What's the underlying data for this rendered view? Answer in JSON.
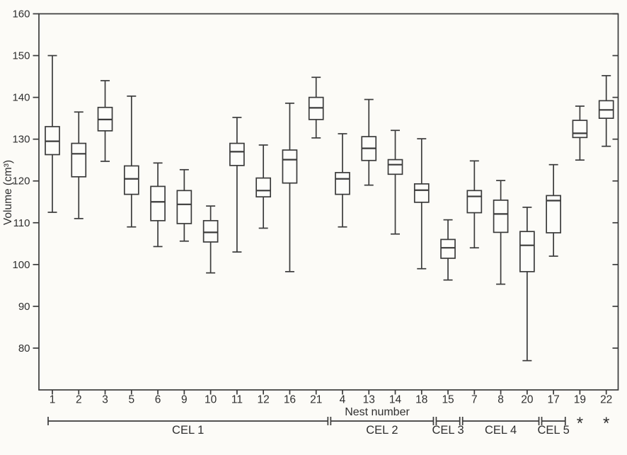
{
  "colors": {
    "background": "#fcfbf7",
    "line": "#3b3b3b",
    "text": "#2f2f2f",
    "box_fill": "#fdfdfa"
  },
  "chart_data": {
    "type": "boxplot",
    "xlabel": "Nest number",
    "ylabel": "Volume (cm³)",
    "ylim": [
      70,
      160
    ],
    "yticks": [
      80,
      90,
      100,
      110,
      120,
      130,
      140,
      150,
      160
    ],
    "grid": false,
    "frame": true,
    "categories": [
      "1",
      "2",
      "3",
      "5",
      "6",
      "9",
      "10",
      "11",
      "12",
      "16",
      "21",
      "4",
      "13",
      "14",
      "18",
      "15",
      "7",
      "8",
      "20",
      "17",
      "19",
      "22"
    ],
    "boxes_legend": [
      "whisker_low",
      "q1",
      "median",
      "q3",
      "whisker_high"
    ],
    "boxes": [
      [
        112.5,
        126.3,
        129.5,
        133.0,
        150.0
      ],
      [
        111.0,
        121.0,
        126.5,
        129.0,
        136.5
      ],
      [
        124.7,
        132.0,
        134.7,
        137.6,
        144.0
      ],
      [
        109.0,
        116.8,
        120.5,
        123.6,
        140.3
      ],
      [
        104.3,
        110.5,
        115.0,
        118.7,
        124.3
      ],
      [
        105.6,
        109.8,
        114.4,
        117.7,
        122.7
      ],
      [
        98.0,
        105.4,
        107.7,
        110.5,
        114.0
      ],
      [
        103.0,
        123.7,
        127.0,
        129.0,
        135.2
      ],
      [
        108.7,
        116.2,
        117.7,
        120.7,
        128.6
      ],
      [
        98.3,
        119.5,
        125.1,
        127.4,
        138.6
      ],
      [
        130.3,
        134.7,
        137.5,
        140.0,
        144.8
      ],
      [
        109.0,
        116.8,
        120.5,
        122.0,
        131.3
      ],
      [
        119.0,
        124.9,
        127.8,
        130.6,
        139.5
      ],
      [
        107.3,
        121.6,
        123.9,
        125.1,
        132.1
      ],
      [
        99.0,
        114.9,
        117.8,
        119.3,
        130.1
      ],
      [
        96.3,
        101.5,
        104.0,
        106.0,
        110.7
      ],
      [
        104.0,
        112.4,
        116.3,
        117.7,
        124.8
      ],
      [
        95.3,
        107.7,
        112.1,
        115.4,
        120.1
      ],
      [
        77.0,
        98.3,
        104.6,
        107.9,
        113.7
      ],
      [
        102.0,
        107.6,
        115.3,
        116.5,
        123.9
      ],
      [
        125.0,
        130.4,
        131.4,
        134.5,
        137.9
      ],
      [
        128.3,
        135.0,
        137.0,
        139.2,
        145.2
      ]
    ],
    "groups": [
      {
        "label": "CEL 1",
        "start_index": 0,
        "end_index": 10
      },
      {
        "label": "CEL 2",
        "start_index": 11,
        "end_index": 14
      },
      {
        "label": "CEL 3",
        "start_index": 15,
        "end_index": 15
      },
      {
        "label": "CEL 4",
        "start_index": 16,
        "end_index": 18
      },
      {
        "label": "CEL 5",
        "start_index": 19,
        "end_index": 19
      }
    ],
    "annotations": [
      {
        "category": "19",
        "symbol": "*"
      },
      {
        "category": "22",
        "symbol": "*"
      }
    ],
    "legend_position": "none"
  }
}
